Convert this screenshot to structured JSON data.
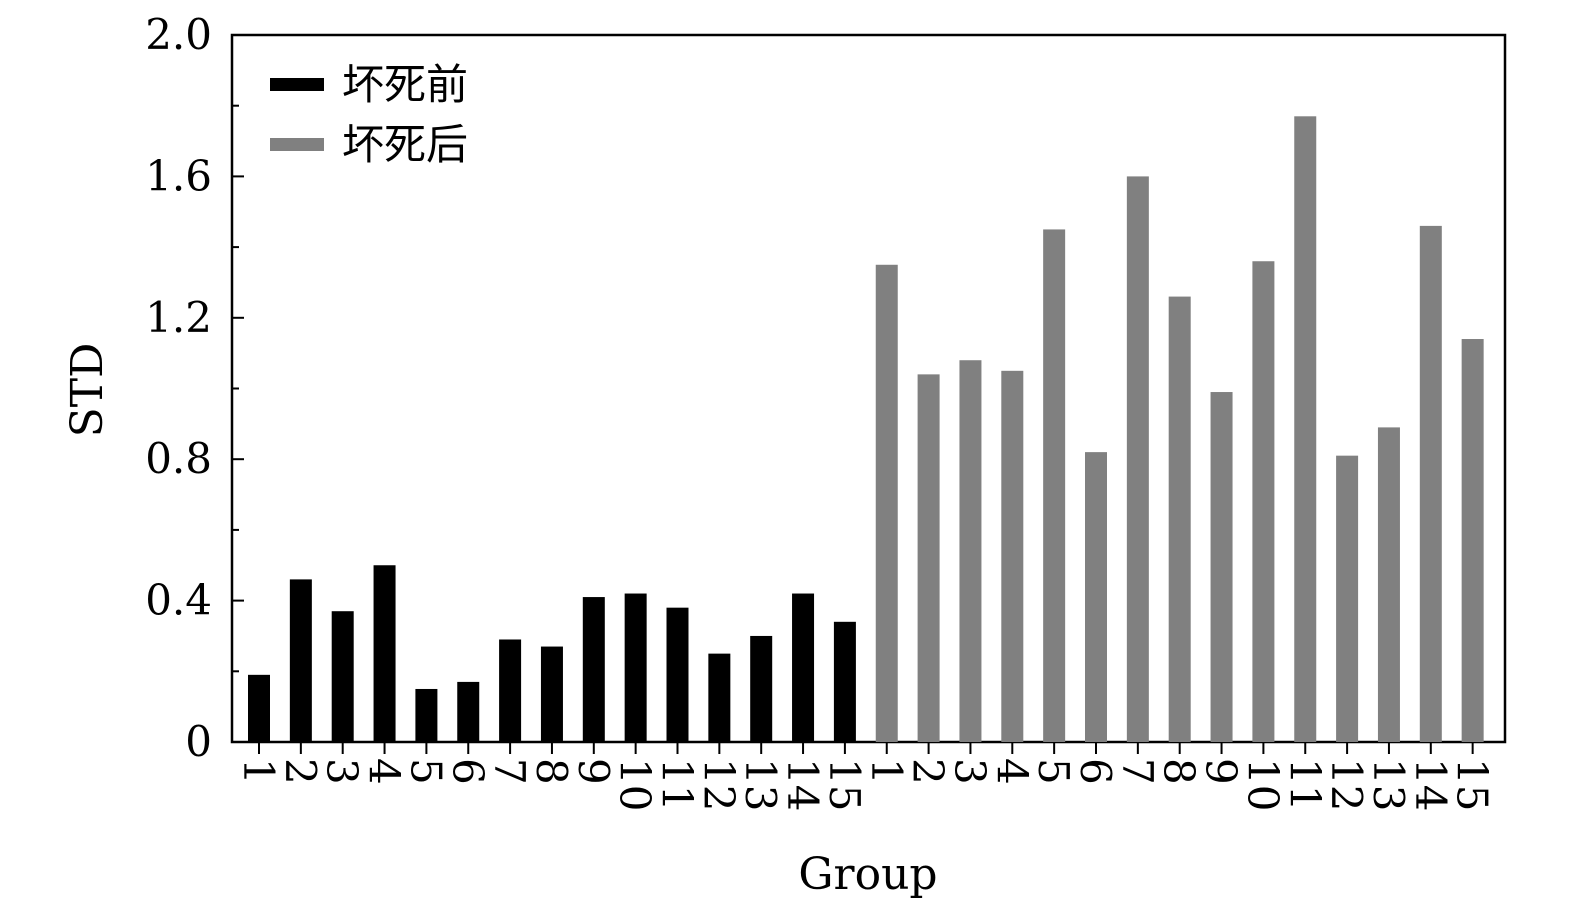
{
  "chart_data": {
    "type": "bar",
    "title": "",
    "xlabel": "Group",
    "ylabel": "STD",
    "ylim": [
      0,
      2.0
    ],
    "yticks": [
      "0",
      "0.4",
      "0.8",
      "1.2",
      "1.6",
      "2.0"
    ],
    "ytick_values": [
      0,
      0.4,
      0.8,
      1.2,
      1.6,
      2.0
    ],
    "legend_position": "top-left",
    "grid": false,
    "series": [
      {
        "name": "坏死前",
        "color": "#000000",
        "categories": [
          "1",
          "2",
          "3",
          "4",
          "5",
          "6",
          "7",
          "8",
          "9",
          "10",
          "11",
          "12",
          "13",
          "14",
          "15"
        ],
        "values": [
          0.19,
          0.46,
          0.37,
          0.5,
          0.15,
          0.17,
          0.29,
          0.27,
          0.41,
          0.42,
          0.38,
          0.25,
          0.3,
          0.42,
          0.34
        ]
      },
      {
        "name": "坏死后",
        "color": "#808080",
        "categories": [
          "1",
          "2",
          "3",
          "4",
          "5",
          "6",
          "7",
          "8",
          "9",
          "10",
          "11",
          "12",
          "13",
          "14",
          "15"
        ],
        "values": [
          1.35,
          1.04,
          1.08,
          1.05,
          1.45,
          0.82,
          1.6,
          1.26,
          0.99,
          1.36,
          1.77,
          0.81,
          0.89,
          1.46,
          1.14
        ]
      }
    ]
  }
}
